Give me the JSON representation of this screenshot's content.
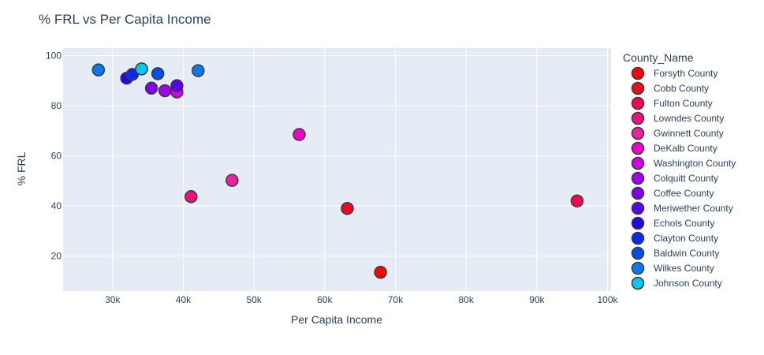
{
  "chart_data": {
    "type": "scatter",
    "title": "% FRL vs Per Capita Income",
    "xlabel": "Per Capita Income",
    "ylabel": "% FRL",
    "xlim": [
      23000,
      100500
    ],
    "ylim": [
      6,
      103
    ],
    "x_ticks": [
      30000,
      40000,
      50000,
      60000,
      70000,
      80000,
      90000,
      100000
    ],
    "x_tick_labels": [
      "30k",
      "40k",
      "50k",
      "60k",
      "70k",
      "80k",
      "90k",
      "100k"
    ],
    "y_ticks": [
      20,
      40,
      60,
      80,
      100
    ],
    "y_tick_labels": [
      "20",
      "40",
      "60",
      "80",
      "100"
    ],
    "grid": true,
    "legend_title": "County_Name",
    "legend_position": "right",
    "series": [
      {
        "name": "Forsyth County",
        "color": "#ff0000",
        "points": [
          [
            67900,
            13.5
          ]
        ]
      },
      {
        "name": "Cobb County",
        "color": "#f00a1e",
        "points": [
          [
            63200,
            39
          ]
        ]
      },
      {
        "name": "Fulton County",
        "color": "#ff0050",
        "points": [
          [
            95700,
            42
          ]
        ]
      },
      {
        "name": "Lowndes County",
        "color": "#f0107a",
        "points": [
          [
            41100,
            43.7
          ]
        ]
      },
      {
        "name": "Gwinnett County",
        "color": "#f01ea0",
        "points": [
          [
            46900,
            50.2
          ]
        ]
      },
      {
        "name": "DeKalb County",
        "color": "#f000c8",
        "points": [
          [
            56400,
            68.5
          ]
        ]
      },
      {
        "name": "Washington County",
        "color": "#d200e6",
        "points": [
          [
            39100,
            85.5
          ]
        ]
      },
      {
        "name": "Colquitt County",
        "color": "#a000f0",
        "points": [
          [
            37400,
            86
          ]
        ]
      },
      {
        "name": "Coffee County",
        "color": "#8200f0",
        "points": [
          [
            35500,
            87
          ]
        ]
      },
      {
        "name": "Meriwether County",
        "color": "#5a00f0",
        "points": [
          [
            39100,
            88
          ]
        ]
      },
      {
        "name": "Echols County",
        "color": "#2800f0",
        "points": [
          [
            32000,
            91
          ]
        ]
      },
      {
        "name": "Clayton County",
        "color": "#0a28f0",
        "points": [
          [
            32800,
            92.5
          ]
        ]
      },
      {
        "name": "Baldwin County",
        "color": "#0050e6",
        "points": [
          [
            36400,
            92.8
          ]
        ]
      },
      {
        "name": "Wilkes County",
        "color": "#0a78f0",
        "points": [
          [
            28000,
            94.3
          ],
          [
            42100,
            94
          ]
        ]
      },
      {
        "name": "Johnson County",
        "color": "#00c8f0",
        "points": [
          [
            34100,
            94.7
          ]
        ]
      }
    ]
  }
}
